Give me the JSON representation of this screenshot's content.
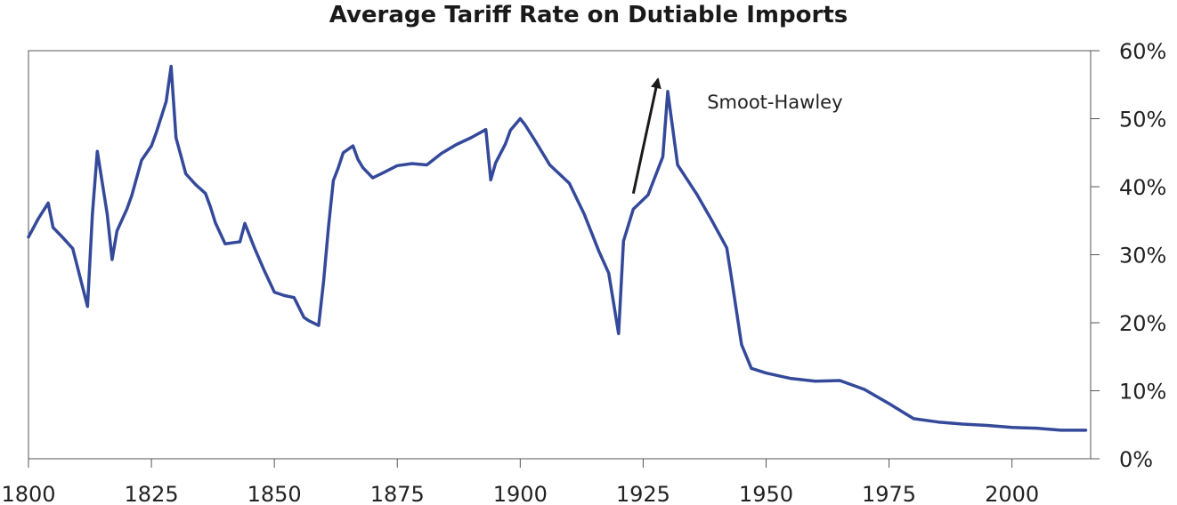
{
  "chart_data": {
    "type": "line",
    "title": "Average Tariff Rate on Dutiable Imports",
    "xlabel": "",
    "ylabel": "",
    "xlim": [
      1800,
      2016
    ],
    "ylim": [
      0,
      60
    ],
    "y_axis_side": "right",
    "grid": false,
    "legend": "none",
    "x_ticks": [
      1800,
      1825,
      1850,
      1875,
      1900,
      1925,
      1950,
      1975,
      2000
    ],
    "x_tick_labels": [
      "1800",
      "1825",
      "1850",
      "1875",
      "1900",
      "1925",
      "1950",
      "1975",
      "2000"
    ],
    "y_ticks": [
      0,
      10,
      20,
      30,
      40,
      50,
      60
    ],
    "y_tick_labels": [
      "0%",
      "10%",
      "20%",
      "30%",
      "40%",
      "50%",
      "60%"
    ],
    "series": [
      {
        "color": "#34499a",
        "x": [
          1800,
          1802,
          1804,
          1805,
          1807,
          1809,
          1812,
          1813,
          1814,
          1816,
          1817,
          1818,
          1820,
          1821,
          1823,
          1825,
          1826,
          1828,
          1829,
          1830,
          1832,
          1834,
          1836,
          1837,
          1838,
          1840,
          1842,
          1843,
          1844,
          1846,
          1848,
          1850,
          1852,
          1854,
          1856,
          1857,
          1859,
          1860,
          1861,
          1862,
          1863,
          1864,
          1866,
          1867,
          1868,
          1870,
          1872,
          1875,
          1878,
          1881,
          1884,
          1887,
          1890,
          1893,
          1894,
          1895,
          1897,
          1898,
          1900,
          1901,
          1903,
          1906,
          1910,
          1913,
          1916,
          1918,
          1920,
          1921,
          1923,
          1926,
          1929,
          1930,
          1932,
          1934,
          1936,
          1939,
          1942,
          1943,
          1945,
          1947,
          1950,
          1955,
          1960,
          1965,
          1970,
          1975,
          1980,
          1985,
          1990,
          1995,
          2000,
          2005,
          2010,
          2015
        ],
        "y": [
          32.6,
          35.3,
          37.6,
          34.0,
          32.5,
          30.9,
          22.4,
          36.0,
          45.2,
          36.0,
          29.3,
          33.5,
          36.7,
          38.7,
          43.9,
          46.0,
          48.0,
          52.5,
          57.7,
          47.2,
          41.9,
          40.3,
          39.0,
          37.0,
          34.7,
          31.6,
          31.8,
          31.9,
          34.6,
          30.9,
          27.6,
          24.5,
          24.0,
          23.7,
          20.8,
          20.3,
          19.6,
          26.0,
          34.0,
          40.9,
          42.8,
          45.0,
          46.0,
          44.0,
          42.8,
          41.3,
          42.0,
          43.1,
          43.4,
          43.2,
          44.9,
          46.2,
          47.2,
          48.4,
          41.0,
          43.5,
          46.3,
          48.3,
          50.0,
          49.1,
          46.8,
          43.2,
          40.5,
          36.0,
          30.5,
          27.3,
          18.4,
          32.0,
          36.7,
          38.8,
          44.4,
          54.0,
          43.2,
          41.0,
          38.8,
          35.0,
          31.0,
          26.4,
          16.8,
          13.3,
          12.6,
          11.8,
          11.4,
          11.5,
          10.2,
          8.1,
          5.9,
          5.4,
          5.1,
          4.9,
          4.6,
          4.5,
          4.2,
          4.2
        ]
      }
    ],
    "annotations": [
      {
        "text": "Smoot-Hawley",
        "x": 1938,
        "y": 51.5
      }
    ],
    "arrow": {
      "from": [
        1923,
        39.0
      ],
      "to": [
        1928,
        55.8
      ]
    }
  }
}
